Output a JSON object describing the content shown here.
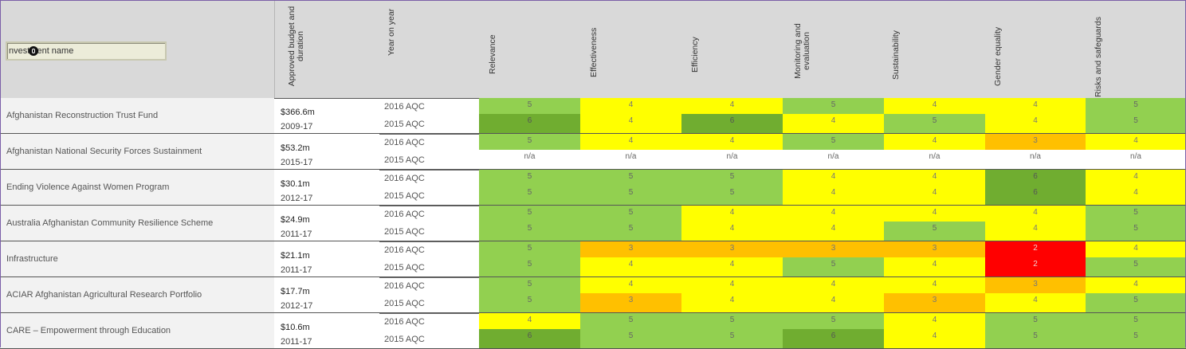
{
  "search": {
    "placeholder": "nvestment name"
  },
  "columns": [
    "Approved budget and duration",
    "Year on year",
    "Relevance",
    "Effectiveness",
    "Efficiency",
    "Monitoring and evaluation",
    "Sustainability",
    "Gender equality",
    "Risks  and safeguards"
  ],
  "rows": [
    {
      "name": "Afghanistan Reconstruction Trust Fund",
      "budget": "$366.6m",
      "duration": "2009-17",
      "years": [
        "2016 AQC",
        "2015 AQC"
      ],
      "ratings": [
        [
          "5",
          "4",
          "4",
          "5",
          "4",
          "4",
          "5"
        ],
        [
          "6",
          "4",
          "6",
          "4",
          "5",
          "4",
          "5"
        ]
      ]
    },
    {
      "name": "Afghanistan National Security Forces Sustainment",
      "budget": "$53.2m",
      "duration": "2015-17",
      "years": [
        "2016 AQC",
        "2015 AQC"
      ],
      "ratings": [
        [
          "5",
          "4",
          "4",
          "5",
          "4",
          "3",
          "4"
        ],
        [
          "n/a",
          "n/a",
          "n/a",
          "n/a",
          "n/a",
          "n/a",
          "n/a"
        ]
      ]
    },
    {
      "name": "Ending Violence Against Women Program",
      "budget": "$30.1m",
      "duration": "2012-17",
      "years": [
        "2016 AQC",
        "2015 AQC"
      ],
      "ratings": [
        [
          "5",
          "5",
          "5",
          "4",
          "4",
          "6",
          "4"
        ],
        [
          "5",
          "5",
          "5",
          "4",
          "4",
          "6",
          "4"
        ]
      ]
    },
    {
      "name": "Australia Afghanistan Community Resilience Scheme",
      "budget": "$24.9m",
      "duration": "2011-17",
      "years": [
        "2016 AQC",
        "2015 AQC"
      ],
      "ratings": [
        [
          "5",
          "5",
          "4",
          "4",
          "4",
          "4",
          "5"
        ],
        [
          "5",
          "5",
          "4",
          "4",
          "5",
          "4",
          "5"
        ]
      ]
    },
    {
      "name": "Infrastructure",
      "budget": "$21.1m",
      "duration": "2011-17",
      "years": [
        "2016 AQC",
        "2015 AQC"
      ],
      "ratings": [
        [
          "5",
          "3",
          "3",
          "3",
          "3",
          "2",
          "4"
        ],
        [
          "5",
          "4",
          "4",
          "5",
          "4",
          "2",
          "5"
        ]
      ]
    },
    {
      "name": "ACIAR Afghanistan Agricultural Research Portfolio",
      "budget": "$17.7m",
      "duration": "2012-17",
      "years": [
        "2016 AQC",
        "2015 AQC"
      ],
      "ratings": [
        [
          "5",
          "4",
          "4",
          "4",
          "4",
          "3",
          "4"
        ],
        [
          "5",
          "3",
          "4",
          "4",
          "3",
          "4",
          "5"
        ]
      ]
    },
    {
      "name": "CARE – Empowerment through Education",
      "budget": "$10.6m",
      "duration": "2011-17",
      "years": [
        "2016 AQC",
        "2015 AQC"
      ],
      "ratings": [
        [
          "4",
          "5",
          "5",
          "5",
          "4",
          "5",
          "5"
        ],
        [
          "6",
          "5",
          "5",
          "6",
          "4",
          "5",
          "5"
        ]
      ]
    }
  ],
  "colors": {
    "rating_6": "#70ad30",
    "rating_5": "#92d050",
    "rating_4": "#ffff00",
    "rating_3": "#ffc000",
    "rating_2": "#ff0000",
    "header_bg": "#d9d9d9"
  }
}
